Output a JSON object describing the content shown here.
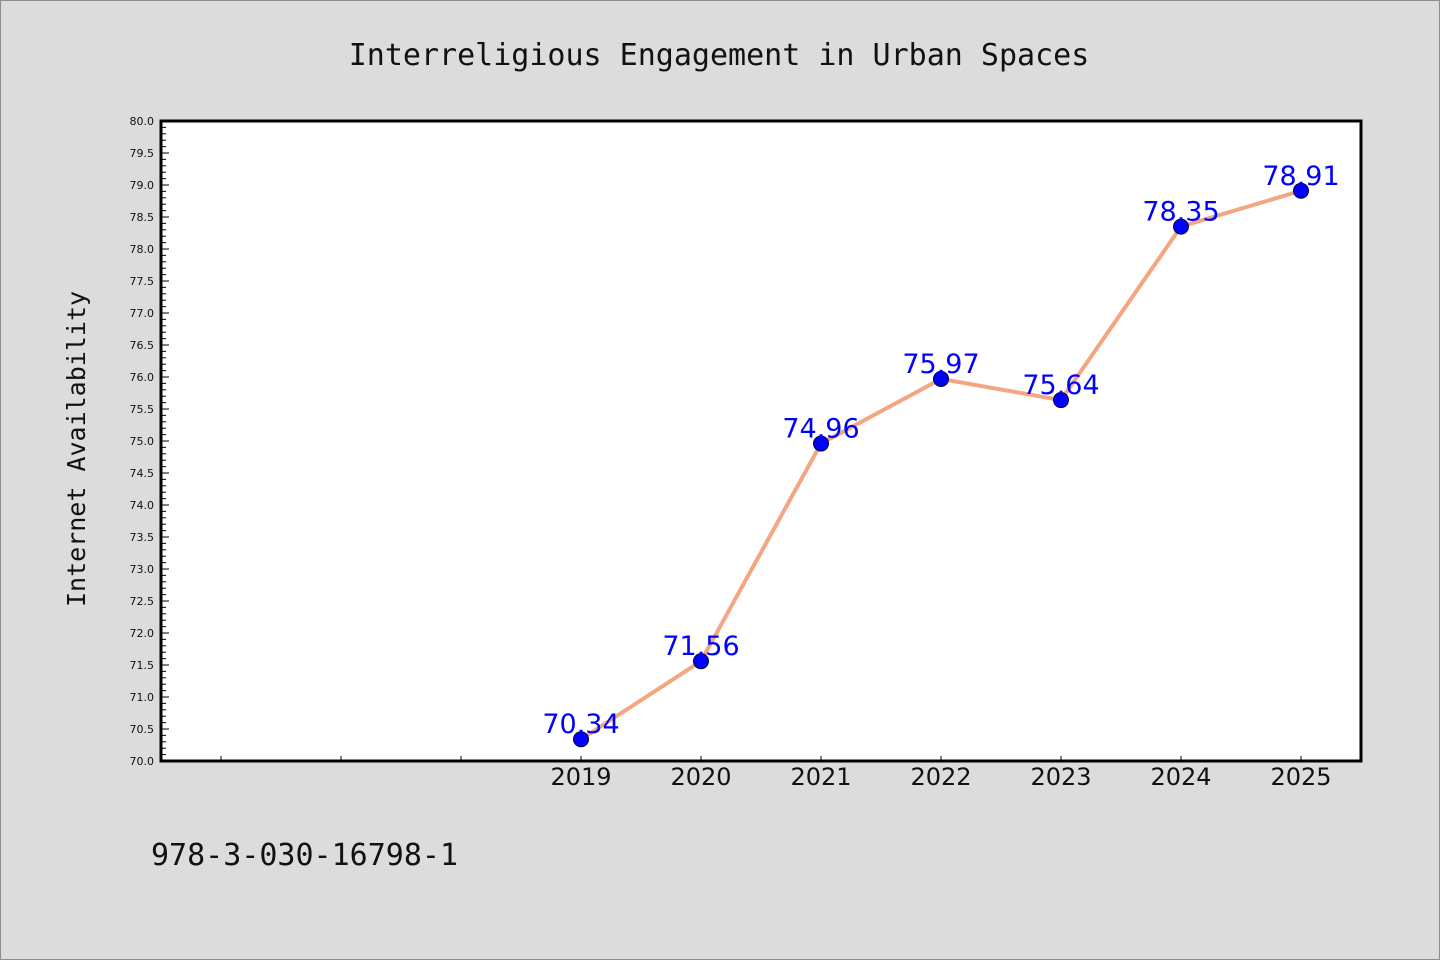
{
  "chart_data": {
    "type": "line",
    "title": "Interreligious Engagement in Urban Spaces",
    "xlabel": "",
    "ylabel": "Internet Availability",
    "x": [
      "2019",
      "2020",
      "2021",
      "2022",
      "2023",
      "2024",
      "2025"
    ],
    "values": [
      70.34,
      71.56,
      74.96,
      75.97,
      75.64,
      78.35,
      78.91
    ],
    "data_labels": [
      "70.34",
      "71.56",
      "74.96",
      "75.97",
      "75.64",
      "78.35",
      "78.91"
    ],
    "ylim": [
      70.0,
      80.0
    ],
    "xlim": [
      2015.5,
      2025.5
    ],
    "yticks": [
      "70.0",
      "70.5",
      "71.0",
      "71.5",
      "72.0",
      "72.5",
      "73.0",
      "73.5",
      "74.0",
      "74.5",
      "75.0",
      "75.5",
      "76.0",
      "76.5",
      "77.0",
      "77.5",
      "78.0",
      "78.5",
      "79.0",
      "79.5",
      "80.0"
    ],
    "grid": false,
    "legend": "none",
    "colors": {
      "line": "#f4a582",
      "marker": "#0000ff",
      "data_label": "#0000ff",
      "background": "#dcdcdc",
      "plot_background": "#ffffff"
    }
  },
  "footnote": "978-3-030-16798-1"
}
